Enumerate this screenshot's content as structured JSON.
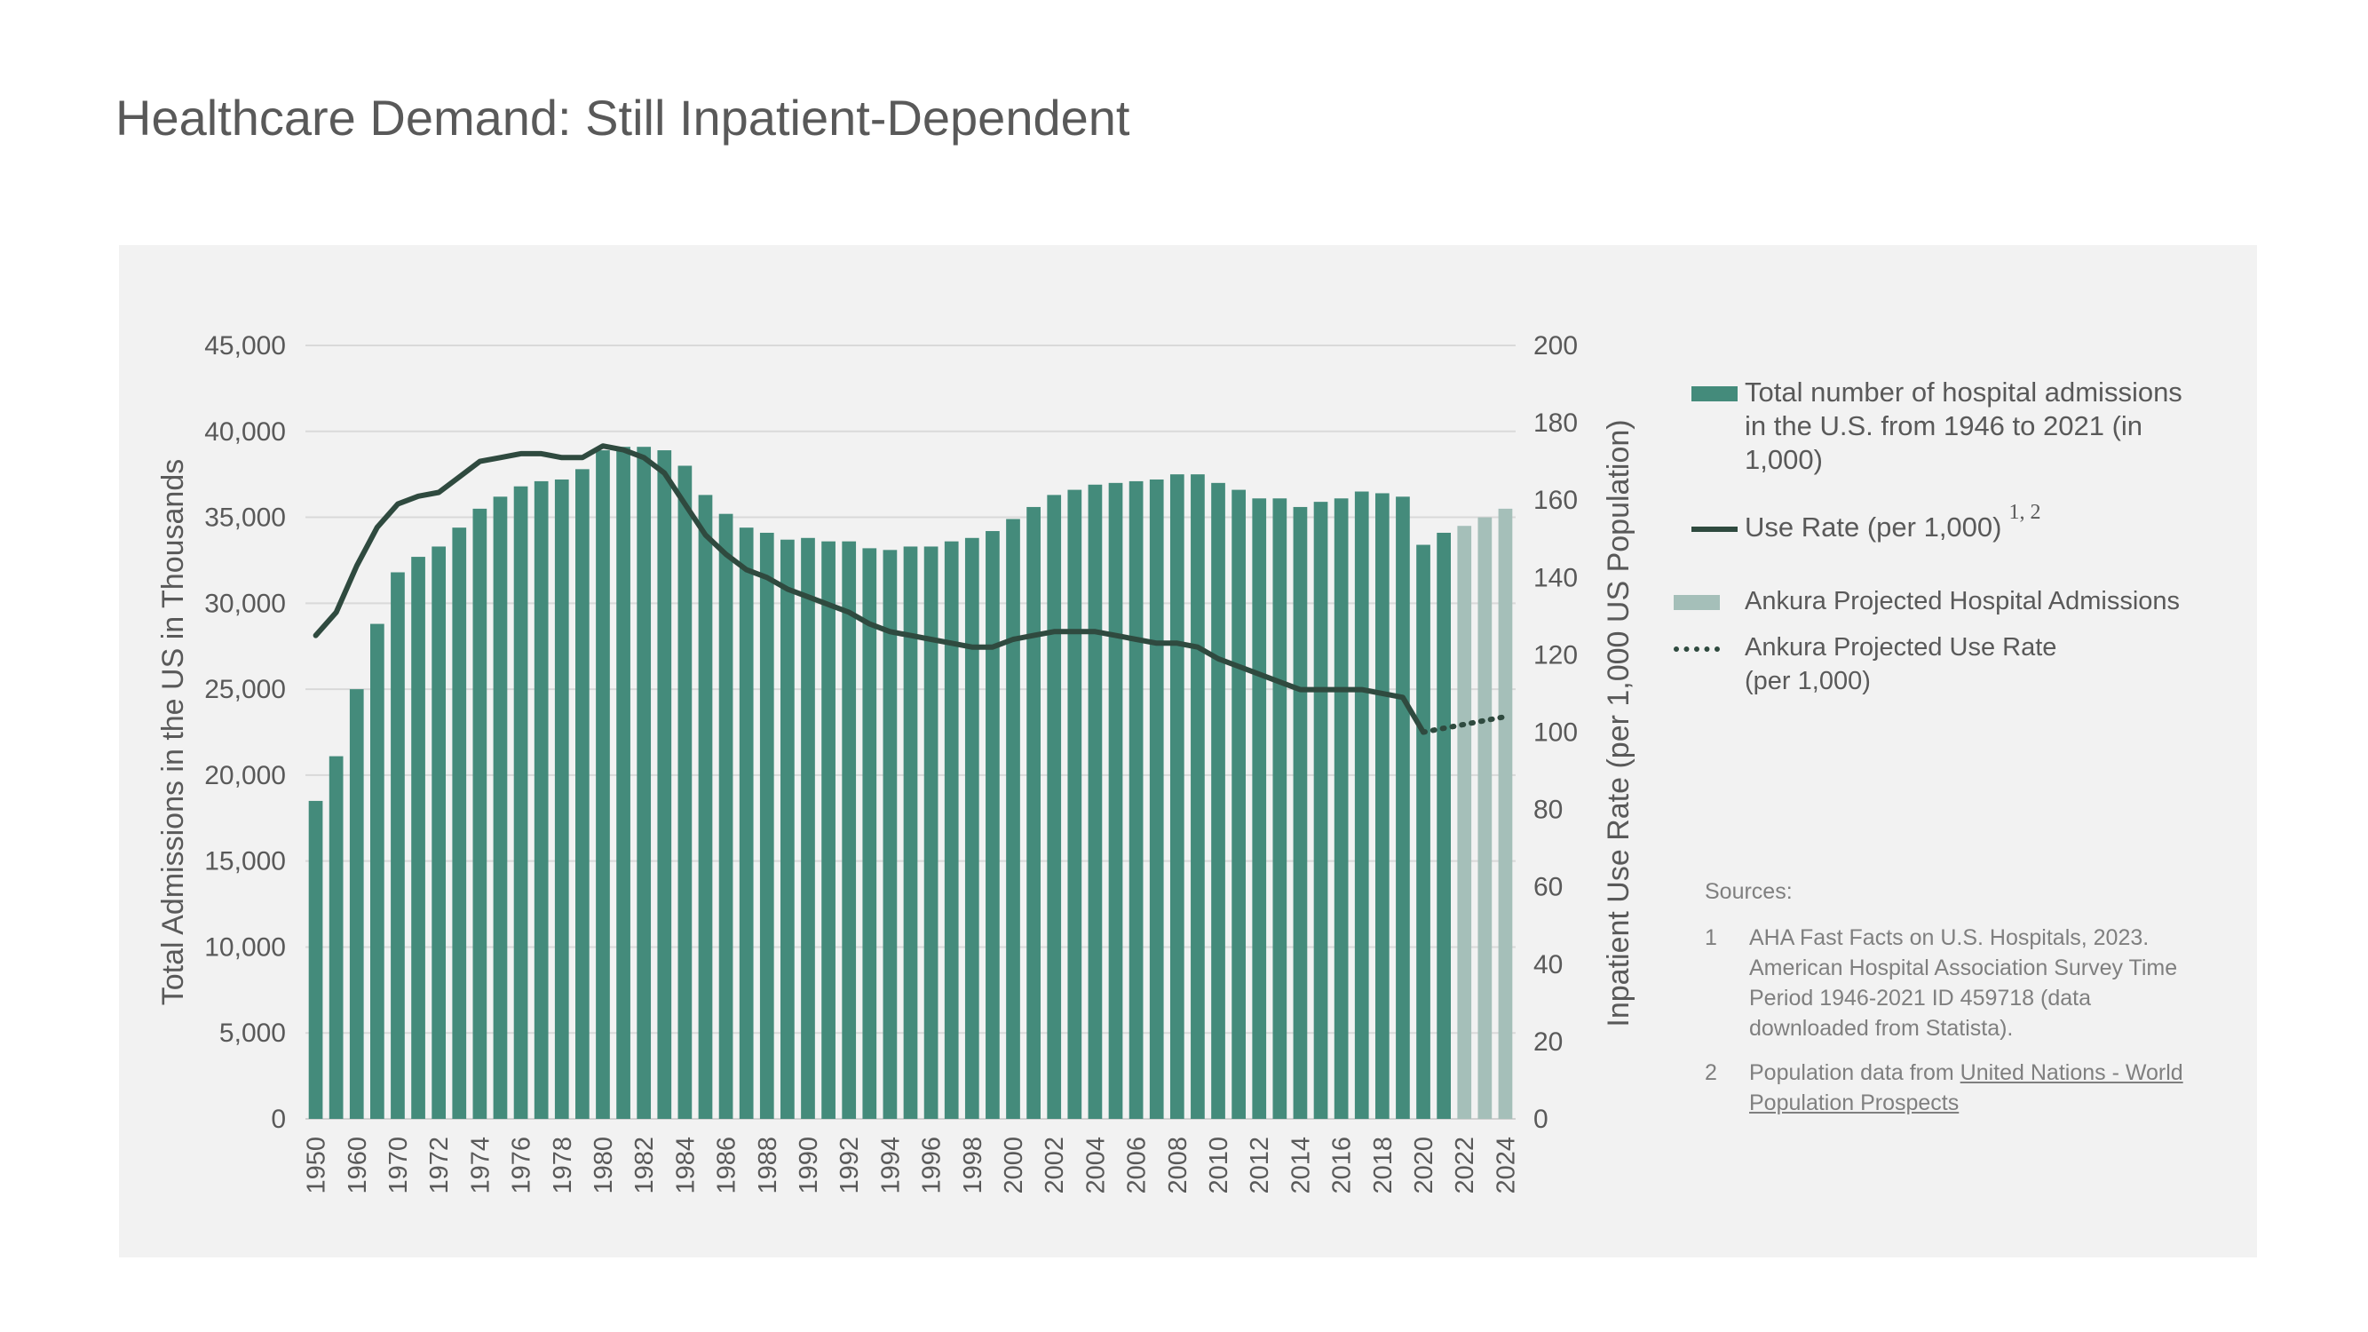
{
  "slide": {
    "title": "Healthcare Demand: Still Inpatient-Dependent"
  },
  "legend": {
    "admissions": "Total number of hospital admissions in the U.S. from 1946 to 2021 (in 1,000)",
    "use_rate": "Use Rate (per 1,000)",
    "use_rate_sup": "1, 2",
    "projected_admissions": "Ankura Projected Hospital Admissions",
    "projected_use_rate": "Ankura Projected Use Rate (per 1,000)"
  },
  "sources": {
    "heading": "Sources:",
    "items": [
      {
        "num": "1",
        "text": "AHA Fast Facts on U.S. Hospitals, 2023. American Hospital Association Survey Time Period 1946-2021 ID 459718  (data downloaded from Statista).",
        "link": ""
      },
      {
        "num": "2",
        "text": "Population data from ",
        "link": "United Nations - World Population Prospects"
      }
    ]
  },
  "colors": {
    "bar": "#448b7b",
    "projected_bar": "#a5bfb9",
    "line": "#2f4a3f",
    "grid": "#d9d9d9",
    "panel": "#f2f2f2",
    "text": "#595959"
  },
  "chart_data": {
    "type": "bar",
    "title": "",
    "xlabel": "",
    "ylabel": "Total Admissions in the US in Thousands",
    "y2label": "Inpatient Use Rate (per 1,000 US Population)",
    "ylim": [
      0,
      45000
    ],
    "y2lim": [
      0,
      200
    ],
    "yticks": [
      0,
      5000,
      10000,
      15000,
      20000,
      25000,
      30000,
      35000,
      40000,
      45000
    ],
    "ytick_labels": [
      "0",
      "5,000",
      "10,000",
      "15,000",
      "20,000",
      "25,000",
      "30,000",
      "35,000",
      "40,000",
      "45,000"
    ],
    "y2ticks": [
      0,
      20,
      40,
      60,
      80,
      100,
      120,
      140,
      160,
      180,
      200
    ],
    "grid": true,
    "legend_position": "right",
    "categories": [
      "1950",
      "1955",
      "1960",
      "1965",
      "1970",
      "1971",
      "1972",
      "1973",
      "1974",
      "1975",
      "1976",
      "1977",
      "1978",
      "1979",
      "1980",
      "1981",
      "1982",
      "1983",
      "1984",
      "1985",
      "1986",
      "1987",
      "1988",
      "1989",
      "1990",
      "1991",
      "1992",
      "1993",
      "1994",
      "1995",
      "1996",
      "1997",
      "1998",
      "1999",
      "2000",
      "2001",
      "2002",
      "2003",
      "2004",
      "2005",
      "2006",
      "2007",
      "2008",
      "2009",
      "2010",
      "2011",
      "2012",
      "2013",
      "2014",
      "2015",
      "2016",
      "2017",
      "2018",
      "2019",
      "2020",
      "2021",
      "2022",
      "2023",
      "2024"
    ],
    "tick_labels": [
      "1950",
      "",
      "1960",
      "",
      "1970",
      "",
      "1972",
      "",
      "1974",
      "",
      "1976",
      "",
      "1978",
      "",
      "1980",
      "",
      "1982",
      "",
      "1984",
      "",
      "1986",
      "",
      "1988",
      "",
      "1990",
      "",
      "1992",
      "",
      "1994",
      "",
      "1996",
      "",
      "1998",
      "",
      "2000",
      "",
      "2002",
      "",
      "2004",
      "",
      "2006",
      "",
      "2008",
      "",
      "2010",
      "",
      "2012",
      "",
      "2014",
      "",
      "2016",
      "",
      "2018",
      "",
      "2020",
      "",
      "2022",
      "",
      "2024"
    ],
    "series": [
      {
        "name": "Total number of hospital admissions in the U.S. from 1946 to 2021 (in 1,000)",
        "kind": "bar",
        "axis": "left",
        "values": [
          18500,
          21100,
          25000,
          28800,
          31800,
          32700,
          33300,
          34400,
          35500,
          36200,
          36800,
          37100,
          37200,
          37800,
          38900,
          39100,
          39100,
          38900,
          38000,
          36300,
          35200,
          34400,
          34100,
          33700,
          33800,
          33600,
          33600,
          33200,
          33100,
          33300,
          33300,
          33600,
          33800,
          34200,
          34900,
          35600,
          36300,
          36600,
          36900,
          37000,
          37100,
          37200,
          37500,
          37500,
          37000,
          36600,
          36100,
          36100,
          35600,
          35900,
          36100,
          36500,
          36400,
          36200,
          33400,
          34100,
          null,
          null,
          null
        ]
      },
      {
        "name": "Ankura Projected Hospital Admissions",
        "kind": "bar",
        "axis": "left",
        "values": [
          null,
          null,
          null,
          null,
          null,
          null,
          null,
          null,
          null,
          null,
          null,
          null,
          null,
          null,
          null,
          null,
          null,
          null,
          null,
          null,
          null,
          null,
          null,
          null,
          null,
          null,
          null,
          null,
          null,
          null,
          null,
          null,
          null,
          null,
          null,
          null,
          null,
          null,
          null,
          null,
          null,
          null,
          null,
          null,
          null,
          null,
          null,
          null,
          null,
          null,
          null,
          null,
          null,
          null,
          null,
          null,
          34500,
          35000,
          35500
        ]
      },
      {
        "name": "Use Rate (per 1,000)",
        "kind": "line",
        "axis": "right",
        "values": [
          125,
          131,
          143,
          153,
          159,
          161,
          162,
          166,
          170,
          171,
          172,
          172,
          171,
          171,
          174,
          173,
          171,
          167,
          159,
          151,
          146,
          142,
          140,
          137,
          135,
          133,
          131,
          128,
          126,
          125,
          124,
          123,
          122,
          122,
          124,
          125,
          126,
          126,
          126,
          125,
          124,
          123,
          123,
          122,
          119,
          117,
          115,
          113,
          111,
          111,
          111,
          111,
          110,
          109,
          100,
          null,
          null,
          null,
          null
        ]
      },
      {
        "name": "Ankura Projected Use Rate (per 1,000)",
        "kind": "line-dotted",
        "axis": "right",
        "values": [
          null,
          null,
          null,
          null,
          null,
          null,
          null,
          null,
          null,
          null,
          null,
          null,
          null,
          null,
          null,
          null,
          null,
          null,
          null,
          null,
          null,
          null,
          null,
          null,
          null,
          null,
          null,
          null,
          null,
          null,
          null,
          null,
          null,
          null,
          null,
          null,
          null,
          null,
          null,
          null,
          null,
          null,
          null,
          null,
          null,
          null,
          null,
          null,
          null,
          null,
          null,
          null,
          null,
          null,
          100,
          101,
          102,
          103,
          104
        ]
      }
    ]
  }
}
